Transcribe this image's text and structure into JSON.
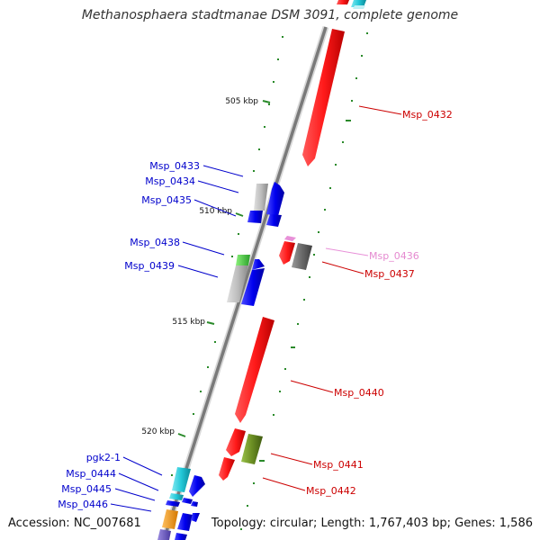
{
  "title": "Methanosphaera stadtmanae DSM 3091, complete genome",
  "accession": "Accession: NC_007681",
  "topology": "Topology: circular; Length: 1,767,403 bp; Genes: 1,586",
  "colors": {
    "backbone": "#8a8a8a",
    "tick": "#2a8a2a",
    "label_forward": "#0000cc",
    "label_reverse": "#cc0000",
    "label_rna": "#e58ad0"
  },
  "scale": {
    "ticks": [
      {
        "label": "505 kbp"
      },
      {
        "label": "510 kbp"
      },
      {
        "label": "515 kbp"
      },
      {
        "label": "520 kbp"
      }
    ]
  },
  "labels": [
    {
      "name": "Msp_0432",
      "color": "#cc0000"
    },
    {
      "name": "Msp_0433",
      "color": "#0000cc"
    },
    {
      "name": "Msp_0434",
      "color": "#0000cc"
    },
    {
      "name": "Msp_0435",
      "color": "#0000cc"
    },
    {
      "name": "Msp_0436",
      "color": "#e58ad0"
    },
    {
      "name": "Msp_0437",
      "color": "#cc0000"
    },
    {
      "name": "Msp_0438",
      "color": "#0000cc"
    },
    {
      "name": "Msp_0439",
      "color": "#0000cc"
    },
    {
      "name": "Msp_0440",
      "color": "#cc0000"
    },
    {
      "name": "Msp_0441",
      "color": "#cc0000"
    },
    {
      "name": "Msp_0442",
      "color": "#cc0000"
    },
    {
      "name": "pgk2-1",
      "color": "#0000cc"
    },
    {
      "name": "Msp_0444",
      "color": "#0000cc"
    },
    {
      "name": "Msp_0445",
      "color": "#0000cc"
    },
    {
      "name": "Msp_0446",
      "color": "#0000cc"
    }
  ]
}
